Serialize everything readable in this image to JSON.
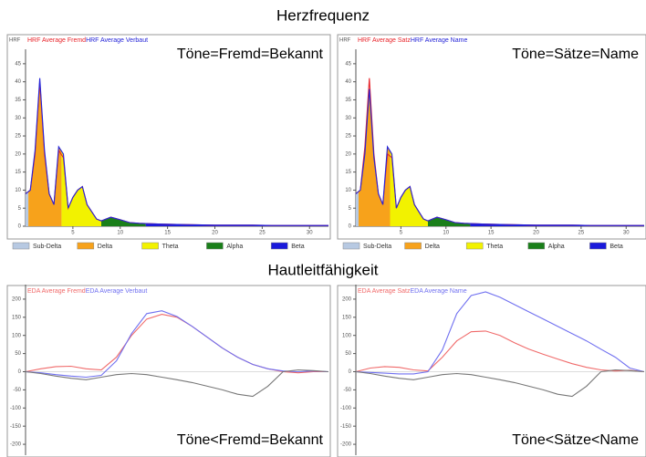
{
  "headings": [
    "Herzfrequenz",
    "Hautleitfähigkeit"
  ],
  "chart_data": [
    {
      "type": "area",
      "ylabel": "HRF",
      "annotation": "Töne=Fremd=Bekannt",
      "x": [
        0,
        0.5,
        1,
        1.5,
        2,
        2.5,
        3,
        3.5,
        4,
        4.5,
        5,
        5.5,
        6,
        6.5,
        7,
        7.5,
        8,
        9,
        10,
        11,
        12,
        14,
        16,
        18,
        20,
        22,
        24,
        26,
        28,
        30,
        32
      ],
      "series": [
        {
          "name": "HRF Average Fremd",
          "color": "#e8252b",
          "values": [
            9,
            10,
            20,
            40,
            20,
            9,
            6,
            21,
            19,
            5,
            8,
            10,
            11,
            6,
            4,
            2,
            1.5,
            2.5,
            1.8,
            1,
            0.8,
            0.6,
            0.5,
            0.4,
            0.3,
            0.3,
            0.3,
            0.2,
            0.2,
            0.2,
            0.2
          ]
        },
        {
          "name": "HRF Average Verbaut",
          "color": "#2525d8",
          "values": [
            9,
            10,
            21,
            41,
            21,
            9,
            6,
            22,
            20,
            5,
            8,
            10,
            11,
            6,
            4,
            2,
            1.5,
            2.5,
            1.8,
            1,
            0.8,
            0.6,
            0.5,
            0.4,
            0.3,
            0.3,
            0.3,
            0.2,
            0.2,
            0.2,
            0.2
          ]
        }
      ],
      "bands": [
        {
          "name": "Sub-Delta",
          "color": "#b7c9e2",
          "from": 0,
          "to": 0.3
        },
        {
          "name": "Delta",
          "color": "#f7a21b",
          "from": 0.3,
          "to": 3.8
        },
        {
          "name": "Theta",
          "color": "#f2f200",
          "from": 3.8,
          "to": 8
        },
        {
          "name": "Alpha",
          "color": "#1a7f1a",
          "from": 8,
          "to": 12.7
        },
        {
          "name": "Beta",
          "color": "#1a1adb",
          "from": 12.7,
          "to": 32
        }
      ],
      "xlim": [
        0,
        32
      ],
      "xticks": [
        5,
        10,
        15,
        20,
        25,
        30
      ],
      "ylim": [
        0,
        48
      ],
      "yticks": [
        0,
        5,
        10,
        15,
        20,
        25,
        30,
        35,
        40,
        45
      ]
    },
    {
      "type": "area",
      "ylabel": "HRF",
      "annotation": "Töne=Sätze=Name",
      "x": [
        0,
        0.5,
        1,
        1.5,
        2,
        2.5,
        3,
        3.5,
        4,
        4.5,
        5,
        5.5,
        6,
        6.5,
        7,
        7.5,
        8,
        9,
        10,
        11,
        12,
        14,
        16,
        18,
        20,
        22,
        24,
        26,
        28,
        30,
        32
      ],
      "series": [
        {
          "name": "HRF Average Satz",
          "color": "#e8252b",
          "values": [
            9,
            10,
            22,
            41,
            20,
            9,
            6,
            20,
            19,
            5,
            8,
            10,
            11,
            6,
            4,
            2,
            1.5,
            2.5,
            1.8,
            1,
            0.8,
            0.6,
            0.5,
            0.4,
            0.3,
            0.3,
            0.3,
            0.2,
            0.2,
            0.2,
            0.2
          ]
        },
        {
          "name": "HRF Average Name",
          "color": "#2525d8",
          "values": [
            9,
            10,
            20,
            38,
            19,
            9,
            6,
            22,
            20,
            5,
            8,
            10,
            11,
            6,
            4,
            2,
            1.5,
            2.5,
            1.8,
            1,
            0.8,
            0.6,
            0.5,
            0.4,
            0.3,
            0.3,
            0.3,
            0.2,
            0.2,
            0.2,
            0.2
          ]
        }
      ],
      "bands": [
        {
          "name": "Sub-Delta",
          "color": "#b7c9e2",
          "from": 0,
          "to": 0.3
        },
        {
          "name": "Delta",
          "color": "#f7a21b",
          "from": 0.3,
          "to": 3.8
        },
        {
          "name": "Theta",
          "color": "#f2f200",
          "from": 3.8,
          "to": 8
        },
        {
          "name": "Alpha",
          "color": "#1a7f1a",
          "from": 8,
          "to": 12.7
        },
        {
          "name": "Beta",
          "color": "#1a1adb",
          "from": 12.7,
          "to": 32
        }
      ],
      "xlim": [
        0,
        32
      ],
      "xticks": [
        5,
        10,
        15,
        20,
        25,
        30
      ],
      "ylim": [
        0,
        48
      ],
      "yticks": [
        0,
        5,
        10,
        15,
        20,
        25,
        30,
        35,
        40,
        45
      ]
    },
    {
      "type": "line",
      "annotation": "Töne<Fremd=Bekannt",
      "x": [
        0,
        0.05,
        0.1,
        0.15,
        0.2,
        0.25,
        0.3,
        0.35,
        0.4,
        0.45,
        0.5,
        0.55,
        0.6,
        0.65,
        0.7,
        0.75,
        0.8,
        0.85,
        0.9,
        0.95,
        1
      ],
      "series": [
        {
          "name": "EDA Average Fremd",
          "color": "#f06a6a",
          "values": [
            0,
            8,
            14,
            15,
            8,
            5,
            40,
            100,
            145,
            158,
            150,
            125,
            95,
            65,
            40,
            20,
            8,
            0,
            -3,
            0,
            0
          ]
        },
        {
          "name": "EDA Average Verbaut",
          "color": "#7070f0",
          "values": [
            0,
            -3,
            -8,
            -12,
            -15,
            -10,
            30,
            105,
            160,
            168,
            152,
            125,
            95,
            65,
            40,
            20,
            8,
            2,
            0,
            2,
            0
          ]
        },
        {
          "color": "#777777",
          "values": [
            0,
            -5,
            -12,
            -18,
            -22,
            -15,
            -8,
            -5,
            -8,
            -15,
            -22,
            -30,
            -40,
            -50,
            -62,
            -68,
            -40,
            0,
            5,
            3,
            0
          ]
        }
      ],
      "xlim": [
        0,
        1
      ],
      "ylim": [
        -230,
        230
      ],
      "yticks": [
        -200,
        -150,
        -100,
        -50,
        0,
        50,
        100,
        150,
        200
      ]
    },
    {
      "type": "line",
      "annotation": "Töne<Sätze<Name",
      "x": [
        0,
        0.05,
        0.1,
        0.15,
        0.2,
        0.25,
        0.3,
        0.35,
        0.4,
        0.45,
        0.5,
        0.55,
        0.6,
        0.65,
        0.7,
        0.75,
        0.8,
        0.85,
        0.9,
        0.95,
        1
      ],
      "series": [
        {
          "name": "EDA Average Satz",
          "color": "#f06a6a",
          "values": [
            0,
            10,
            14,
            12,
            5,
            2,
            40,
            85,
            110,
            112,
            100,
            80,
            62,
            48,
            35,
            22,
            12,
            5,
            2,
            4,
            0
          ]
        },
        {
          "name": "EDA Average Name",
          "color": "#7070f0",
          "values": [
            0,
            -2,
            -4,
            -6,
            -6,
            0,
            60,
            160,
            210,
            220,
            205,
            185,
            165,
            145,
            125,
            105,
            85,
            62,
            40,
            10,
            0
          ]
        },
        {
          "color": "#777777",
          "values": [
            0,
            -5,
            -12,
            -18,
            -22,
            -15,
            -8,
            -5,
            -8,
            -15,
            -22,
            -30,
            -40,
            -50,
            -62,
            -68,
            -40,
            0,
            5,
            3,
            0
          ]
        }
      ],
      "xlim": [
        0,
        1
      ],
      "ylim": [
        -230,
        230
      ],
      "yticks": [
        -200,
        -150,
        -100,
        -50,
        0,
        50,
        100,
        150,
        200
      ]
    }
  ]
}
